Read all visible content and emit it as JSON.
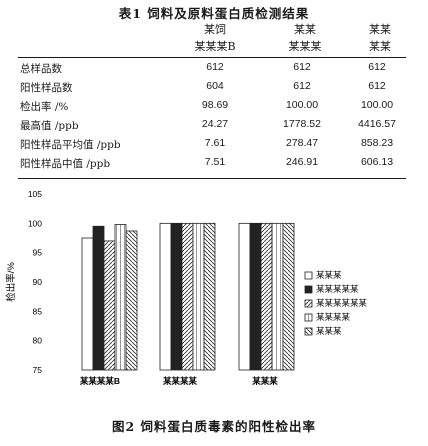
{
  "table": {
    "caption": "表1 饲料及原料蛋白质检测结果",
    "headers": [
      "某饲",
      "某某",
      "某某"
    ],
    "subheaders": [
      "某某某B",
      "某某某",
      "某某"
    ],
    "rows": [
      {
        "label": "总样品数",
        "values": [
          "612",
          "612",
          "612"
        ]
      },
      {
        "label": "阳性样品数",
        "values": [
          "604",
          "612",
          "612"
        ]
      },
      {
        "label": "检出率 /%",
        "values": [
          "98.69",
          "100.00",
          "100.00"
        ]
      },
      {
        "label": "最高值 /ppb",
        "values": [
          "24.27",
          "1778.52",
          "4416.57"
        ]
      },
      {
        "label": "阳性样品平均值 /ppb",
        "values": [
          "7.61",
          "278.47",
          "858.23"
        ]
      },
      {
        "label": "阳性样品中值 /ppb",
        "values": [
          "7.51",
          "246.91",
          "606.13"
        ]
      }
    ]
  },
  "figure": {
    "caption": "图2 饲料蛋白质毒素的阳性检出率",
    "ylabel": "检出率/%",
    "xlabels": [
      "某某某某B",
      "某某某某",
      "某某某"
    ],
    "legend": [
      "某某某",
      "某某某某某",
      "某某某某某某",
      "某某某某",
      "某某某"
    ]
  },
  "chart_data": {
    "type": "bar",
    "categories": [
      "某某某某B",
      "某某某某",
      "某某某"
    ],
    "ylabel": "检出率/%",
    "ylim": [
      75,
      105
    ],
    "yticks": [
      75,
      80,
      85,
      90,
      95,
      100,
      105
    ],
    "series": [
      {
        "name": "某某某",
        "values": [
          97.5,
          100,
          100
        ]
      },
      {
        "name": "某某某某某",
        "values": [
          99.5,
          100,
          100
        ]
      },
      {
        "name": "某某某某某某",
        "values": [
          97.0,
          100,
          100
        ]
      },
      {
        "name": "某某某某",
        "values": [
          99.8,
          100,
          100
        ]
      },
      {
        "name": "某某某",
        "values": [
          98.7,
          100,
          100
        ]
      }
    ],
    "legend_position": "right"
  }
}
